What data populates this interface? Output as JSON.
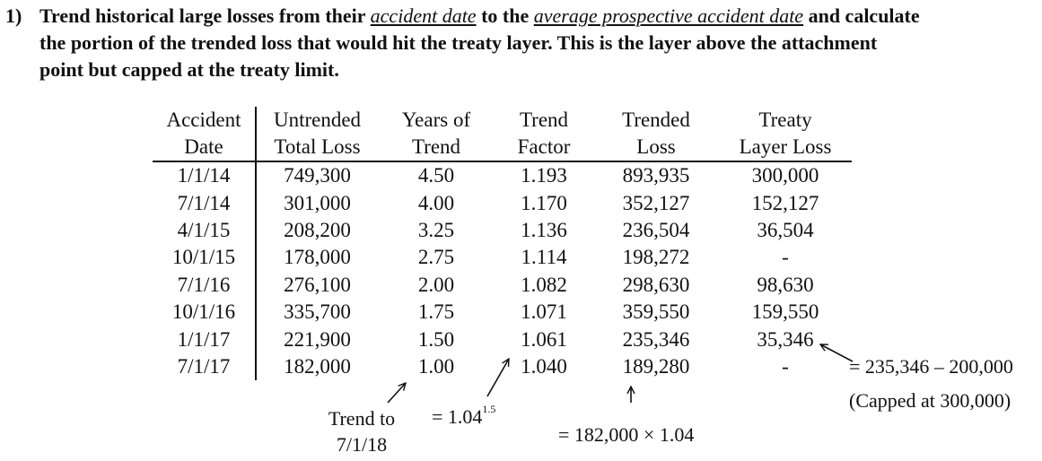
{
  "intro": {
    "number": "1)",
    "line1_a": "Trend historical large losses from their ",
    "line1_b": "accident date",
    "line1_c": " to the ",
    "line1_d": "average prospective accident date",
    "line1_e": " and calculate",
    "line2": "the portion of the trended loss that would hit the treaty layer. This is the layer above the attachment",
    "line3": "point but capped at the treaty limit."
  },
  "table": {
    "headers": [
      {
        "top": "Accident",
        "bottom": "Date"
      },
      {
        "top": "Untrended",
        "bottom": "Total Loss"
      },
      {
        "top": "Years of",
        "bottom": "Trend"
      },
      {
        "top": "Trend",
        "bottom": "Factor"
      },
      {
        "top": "Trended",
        "bottom": "Loss"
      },
      {
        "top": "Treaty",
        "bottom": "Layer Loss"
      }
    ],
    "rows": [
      [
        "1/1/14",
        "749,300",
        "4.50",
        "1.193",
        "893,935",
        "300,000"
      ],
      [
        "7/1/14",
        "301,000",
        "4.00",
        "1.170",
        "352,127",
        "152,127"
      ],
      [
        "4/1/15",
        "208,200",
        "3.25",
        "1.136",
        "236,504",
        "36,504"
      ],
      [
        "10/1/15",
        "178,000",
        "2.75",
        "1.114",
        "198,272",
        "-"
      ],
      [
        "7/1/16",
        "276,100",
        "2.00",
        "1.082",
        "298,630",
        "98,630"
      ],
      [
        "10/1/16",
        "335,700",
        "1.75",
        "1.071",
        "359,550",
        "159,550"
      ],
      [
        "1/1/17",
        "221,900",
        "1.50",
        "1.061",
        "235,346",
        "35,346"
      ],
      [
        "7/1/17",
        "182,000",
        "1.00",
        "1.040",
        "189,280",
        "-"
      ]
    ]
  },
  "notes": {
    "trend_to_l1": "Trend to",
    "trend_to_l2": "7/1/18",
    "factor_base": "= 1.04",
    "factor_exp": "1.5",
    "trended_calc": "= 182,000 × 1.04",
    "layer_calc": "= 235,346 – 200,000",
    "layer_cap": "(Capped at 300,000)"
  }
}
